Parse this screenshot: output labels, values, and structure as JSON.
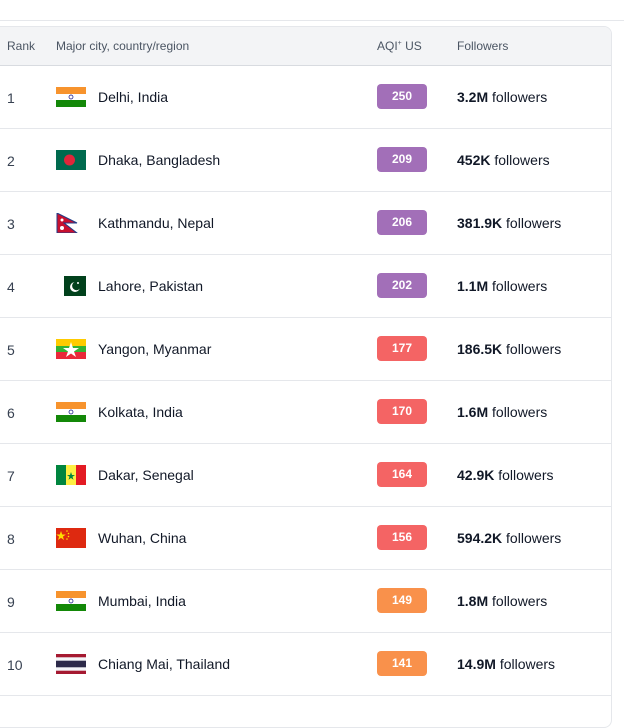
{
  "header": {
    "rank": "Rank",
    "city": "Major city, country/region",
    "aqi": "AQI",
    "aqi_sup": "+",
    "aqi_unit": "US",
    "followers": "Followers"
  },
  "colors": {
    "unhealthy_very": "#a26fb8",
    "unhealthy": "#f46464",
    "sensitive": "#f9914b"
  },
  "rows": [
    {
      "rank": "1",
      "city": "Delhi, India",
      "flag": "india",
      "aqi": "250",
      "level": "unhealthy_very",
      "followers": "3.2M",
      "followers_suffix": "followers"
    },
    {
      "rank": "2",
      "city": "Dhaka, Bangladesh",
      "flag": "bangladesh",
      "aqi": "209",
      "level": "unhealthy_very",
      "followers": "452K",
      "followers_suffix": "followers"
    },
    {
      "rank": "3",
      "city": "Kathmandu, Nepal",
      "flag": "nepal",
      "aqi": "206",
      "level": "unhealthy_very",
      "followers": "381.9K",
      "followers_suffix": "followers"
    },
    {
      "rank": "4",
      "city": "Lahore, Pakistan",
      "flag": "pakistan",
      "aqi": "202",
      "level": "unhealthy_very",
      "followers": "1.1M",
      "followers_suffix": "followers"
    },
    {
      "rank": "5",
      "city": "Yangon, Myanmar",
      "flag": "myanmar",
      "aqi": "177",
      "level": "unhealthy",
      "followers": "186.5K",
      "followers_suffix": "followers"
    },
    {
      "rank": "6",
      "city": "Kolkata, India",
      "flag": "india",
      "aqi": "170",
      "level": "unhealthy",
      "followers": "1.6M",
      "followers_suffix": "followers"
    },
    {
      "rank": "7",
      "city": "Dakar, Senegal",
      "flag": "senegal",
      "aqi": "164",
      "level": "unhealthy",
      "followers": "42.9K",
      "followers_suffix": "followers"
    },
    {
      "rank": "8",
      "city": "Wuhan, China",
      "flag": "china",
      "aqi": "156",
      "level": "unhealthy",
      "followers": "594.2K",
      "followers_suffix": "followers"
    },
    {
      "rank": "9",
      "city": "Mumbai, India",
      "flag": "india",
      "aqi": "149",
      "level": "sensitive",
      "followers": "1.8M",
      "followers_suffix": "followers"
    },
    {
      "rank": "10",
      "city": "Chiang Mai, Thailand",
      "flag": "thailand",
      "aqi": "141",
      "level": "sensitive",
      "followers": "14.9M",
      "followers_suffix": "followers"
    }
  ]
}
